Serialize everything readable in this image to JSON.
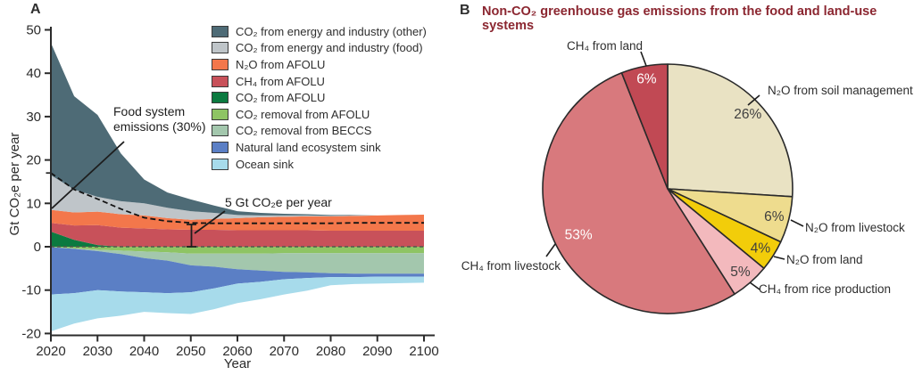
{
  "panelA": {
    "label": "A",
    "ylabel": "Gt CO₂e per year",
    "xlabel": "Year",
    "legend": [
      {
        "key": "co2-energy-other",
        "label": "CO₂ from energy and industry (other)",
        "color": "#4e6b76"
      },
      {
        "key": "co2-energy-food",
        "label": "CO₂ from energy and industry (food)",
        "color": "#bfc5c9"
      },
      {
        "key": "n2o-afolu",
        "label": "N₂O from AFOLU",
        "color": "#f3774b"
      },
      {
        "key": "ch4-afolu",
        "label": "CH₄ from AFOLU",
        "color": "#c8515a"
      },
      {
        "key": "co2-afolu",
        "label": "CO₂ from AFOLU",
        "color": "#0b7a40"
      },
      {
        "key": "co2-removal-afolu",
        "label": "CO₂ removal from AFOLU",
        "color": "#8ec464"
      },
      {
        "key": "co2-removal-beccs",
        "label": "CO₂ removal from BECCS",
        "color": "#a3c7ad"
      },
      {
        "key": "natural-land-sink",
        "label": "Natural land ecosystem sink",
        "color": "#5b7fc5"
      },
      {
        "key": "ocean-sink",
        "label": "Ocean sink",
        "color": "#a7dbeb"
      }
    ],
    "annotations": {
      "food_line": "Food system\nemissions (30%)",
      "five_gt": "5 Gt CO₂e per year"
    }
  },
  "panelB": {
    "label": "B",
    "title": "Non-CO₂ greenhouse gas emissions from the food and land-use systems",
    "outer_labels": {
      "ch4_land": "CH₄ from land",
      "n2o_soil": "N₂O from soil management",
      "n2o_livestock": "N₂O from livestock",
      "n2o_land": "N₂O from land",
      "ch4_rice": "CH₄ from rice production",
      "ch4_livestock": "CH₄ from livestock"
    }
  },
  "chart_data": [
    {
      "id": "A",
      "type": "area",
      "title": "",
      "xlabel": "Year",
      "ylabel": "Gt CO₂e per year",
      "xlim": [
        2020,
        2100
      ],
      "ylim": [
        -20,
        50
      ],
      "xticks": [
        2020,
        2030,
        2040,
        2050,
        2060,
        2070,
        2080,
        2090,
        2100
      ],
      "yticks": [
        50,
        40,
        30,
        20,
        10,
        0,
        -10,
        -20
      ],
      "extra_y_marker": 17,
      "x": [
        2020,
        2025,
        2030,
        2035,
        2040,
        2045,
        2050,
        2055,
        2060,
        2065,
        2070,
        2075,
        2080,
        2085,
        2090,
        2095,
        2100
      ],
      "series_above": [
        {
          "key": "co2-afolu",
          "name": "CO₂ from AFOLU",
          "color": "#0b7a40",
          "values": [
            3.5,
            1.6,
            0.4,
            0,
            0,
            0,
            0,
            0,
            0,
            0,
            0,
            0,
            0,
            0,
            0,
            0,
            0
          ]
        },
        {
          "key": "ch4-afolu",
          "name": "CH₄ from AFOLU",
          "color": "#c8515a",
          "values": [
            2.0,
            3.3,
            4.6,
            4.4,
            4.2,
            4.0,
            3.9,
            3.9,
            3.8,
            3.8,
            3.8,
            3.8,
            3.7,
            3.7,
            3.7,
            3.7,
            3.7
          ]
        },
        {
          "key": "n2o-afolu",
          "name": "N₂O from AFOLU",
          "color": "#f3774b",
          "values": [
            3.0,
            3.0,
            3.1,
            3.1,
            3.0,
            2.6,
            2.3,
            2.5,
            2.8,
            3.0,
            3.1,
            3.2,
            3.3,
            3.4,
            3.5,
            3.6,
            3.7
          ]
        },
        {
          "key": "co2-energy-food",
          "name": "CO₂ from energy and industry (food)",
          "color": "#bfc5c9",
          "values": [
            8.0,
            5.3,
            3.4,
            3.0,
            2.8,
            2.4,
            2.0,
            1.4,
            0.7,
            0.4,
            0.3,
            0.2,
            0.1,
            0.1,
            0,
            0,
            0
          ]
        },
        {
          "key": "co2-energy-other",
          "name": "CO₂ from energy and industry (other)",
          "color": "#4e6b76",
          "values": [
            30.5,
            21.5,
            18.9,
            11.0,
            5.5,
            3.5,
            2.7,
            1.7,
            0.9,
            0.6,
            0.4,
            0.3,
            0.2,
            0.1,
            0,
            0,
            0
          ]
        }
      ],
      "series_below": [
        {
          "key": "co2-removal-afolu",
          "name": "CO₂ removal from AFOLU",
          "color": "#8ec464",
          "values": [
            0.1,
            0.4,
            0.7,
            0.9,
            1.1,
            1.3,
            1.6,
            1.6,
            1.6,
            1.6,
            1.5,
            1.5,
            1.5,
            1.5,
            1.5,
            1.5,
            1.5
          ]
        },
        {
          "key": "co2-removal-beccs",
          "name": "CO₂ removal from BECCS",
          "color": "#a3c7ad",
          "values": [
            0,
            0.1,
            0.3,
            0.8,
            1.5,
            1.9,
            2.7,
            3.0,
            3.6,
            3.9,
            4.3,
            4.4,
            4.6,
            4.7,
            4.7,
            4.7,
            4.7
          ]
        },
        {
          "key": "natural-land-sink",
          "name": "Natural land ecosystem sink",
          "color": "#5b7fc5",
          "values": [
            10.9,
            10.2,
            9.0,
            8.6,
            7.9,
            7.5,
            6.2,
            5.0,
            3.3,
            2.6,
            1.7,
            1.3,
            0.9,
            0.8,
            0.7,
            0.7,
            0.7
          ]
        },
        {
          "key": "ocean-sink",
          "name": "Ocean sink",
          "color": "#a7dbeb",
          "values": [
            8.5,
            7.0,
            6.5,
            5.6,
            4.5,
            4.6,
            5.0,
            4.8,
            4.5,
            4.0,
            3.5,
            2.9,
            1.9,
            1.6,
            1.6,
            1.5,
            1.4
          ]
        }
      ],
      "food_system_line": {
        "name": "Food system emissions (30%)",
        "style": "dashed",
        "values": [
          17,
          13.2,
          11,
          8.7,
          6.7,
          5.9,
          5.5,
          5.4,
          5.4,
          5.4,
          5.4,
          5.4,
          5.4,
          5.5,
          5.5,
          5.5,
          5.5
        ]
      },
      "annotation_value": "5 Gt CO₂e per year"
    },
    {
      "id": "B",
      "type": "pie",
      "title": "Non-CO₂ greenhouse gas emissions from the food and land-use systems",
      "start_angle": "12 o'clock, clockwise",
      "slices": [
        {
          "key": "n2o-soil",
          "label": "N₂O from soil management",
          "value": 26,
          "pct_label": "26%",
          "color": "#e9e2c3",
          "pct_color": "#3f3f3f"
        },
        {
          "key": "n2o-livestock",
          "label": "N₂O from livestock",
          "value": 6,
          "pct_label": "6%",
          "color": "#eedc8e",
          "pct_color": "#3f3f3f"
        },
        {
          "key": "n2o-land",
          "label": "N₂O from land",
          "value": 4,
          "pct_label": "4%",
          "color": "#f2cd0a",
          "pct_color": "#3f3f3f"
        },
        {
          "key": "ch4-rice",
          "label": "CH₄ from rice production",
          "value": 5,
          "pct_label": "5%",
          "color": "#f3b9bd",
          "pct_color": "#3f3f3f"
        },
        {
          "key": "ch4-livestock",
          "label": "CH₄ from livestock",
          "value": 53,
          "pct_label": "53%",
          "color": "#d8797d",
          "pct_color": "#ffffff"
        },
        {
          "key": "ch4-land",
          "label": "CH₄ from land",
          "value": 6,
          "pct_label": "6%",
          "color": "#c14954",
          "pct_color": "#ffffff"
        }
      ]
    }
  ]
}
